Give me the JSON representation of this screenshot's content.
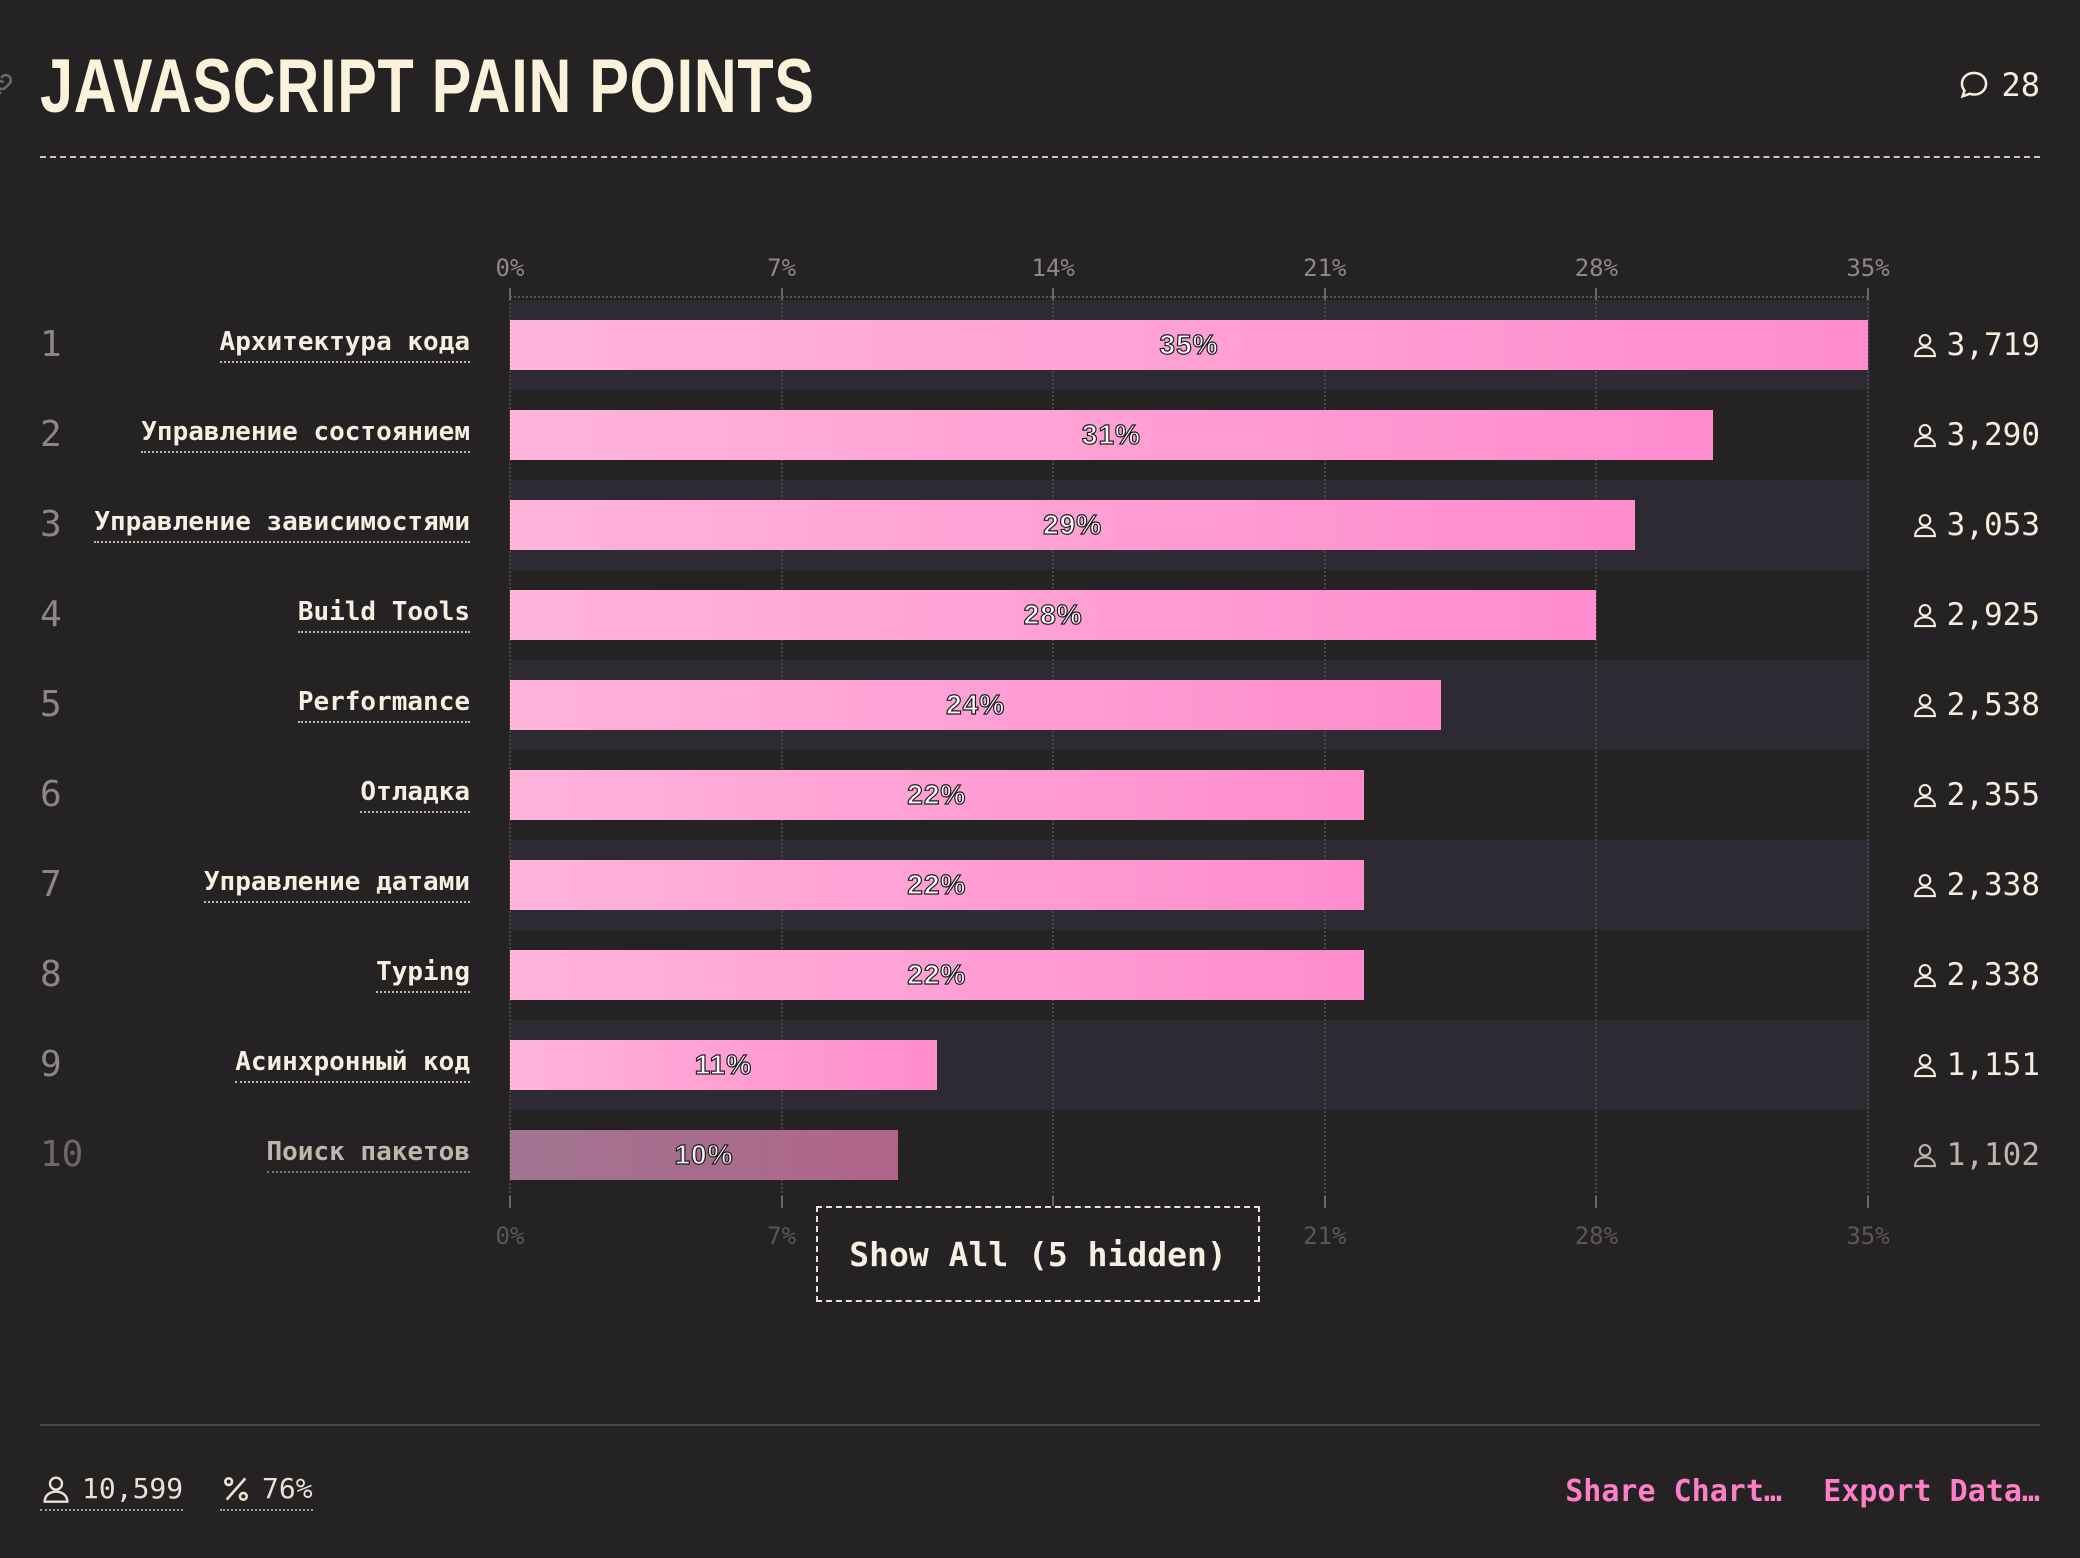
{
  "header": {
    "title": "JAVASCRIPT PAIN POINTS",
    "comment_count": "28"
  },
  "chart_data": {
    "type": "bar",
    "orientation": "horizontal",
    "title": "JAVASCRIPT PAIN POINTS",
    "xlim": [
      0,
      35
    ],
    "x_ticks": [
      "0%",
      "7%",
      "14%",
      "21%",
      "28%",
      "35%"
    ],
    "categories": [
      "Архитектура кода",
      "Управление состоянием",
      "Управление зависимостями",
      "Build Tools",
      "Performance",
      "Отладка",
      "Управление датами",
      "Typing",
      "Асинхронный код",
      "Поиск пакетов"
    ],
    "ranks": [
      "1",
      "2",
      "3",
      "4",
      "5",
      "6",
      "7",
      "8",
      "9",
      "10"
    ],
    "values": [
      35,
      31,
      29,
      28,
      24,
      22,
      22,
      22,
      11,
      10
    ],
    "value_labels": [
      "35%",
      "31%",
      "29%",
      "28%",
      "24%",
      "22%",
      "22%",
      "22%",
      "11%",
      "10%"
    ],
    "counts": [
      "3,719",
      "3,290",
      "3,053",
      "2,925",
      "2,538",
      "2,355",
      "2,338",
      "2,338",
      "1,151",
      "1,102"
    ],
    "bar_colors": [
      "#ffb4dc",
      "#ff8ccd"
    ],
    "grid": true
  },
  "controls": {
    "show_all_label": "Show All (5 hidden)"
  },
  "footer": {
    "respondents": "10,599",
    "percentage": "76%",
    "share_label": "Share Chart…",
    "export_label": "Export Data…"
  },
  "colors": {
    "background": "#252223",
    "accent": "#ff7ec8",
    "text": "#f4ecdc"
  },
  "icons": [
    "link-icon",
    "comment-icon",
    "user-icon",
    "percent-icon"
  ]
}
